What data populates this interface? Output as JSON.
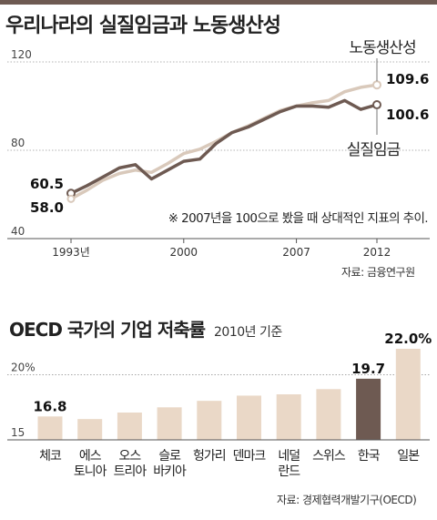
{
  "chart_data": [
    {
      "type": "line",
      "title": "우리나라의 실질임금과 노동생산성",
      "x": [
        1993,
        1994,
        1995,
        1996,
        1997,
        1998,
        1999,
        2000,
        2001,
        2002,
        2003,
        2004,
        2005,
        2006,
        2007,
        2008,
        2009,
        2010,
        2011,
        2012
      ],
      "x_tick_labels": [
        "1993년",
        "2000",
        "2007",
        "2012"
      ],
      "x_ticks": [
        1993,
        2000,
        2007,
        2012
      ],
      "y_tick_labels": [
        "120",
        "80",
        "40"
      ],
      "y_ticks": [
        120,
        80,
        40
      ],
      "ylim": [
        40,
        120
      ],
      "series": [
        {
          "name": "노동생산성",
          "color": "#d9c9bb",
          "values": [
            58.0,
            62.0,
            66.5,
            69.5,
            71.0,
            70.0,
            74.0,
            78.5,
            80.5,
            84.0,
            88.0,
            91.0,
            94.5,
            98.0,
            100.0,
            101.5,
            102.5,
            106.5,
            108.5,
            109.6
          ]
        },
        {
          "name": "실질임금",
          "color": "#6e5a52",
          "values": [
            60.5,
            64.0,
            68.0,
            72.0,
            73.5,
            67.0,
            71.0,
            75.0,
            76.0,
            83.0,
            88.0,
            90.5,
            94.0,
            97.5,
            100.0,
            100.0,
            99.5,
            102.5,
            98.5,
            100.6
          ]
        }
      ],
      "data_labels": {
        "start_wage": "60.5",
        "start_productivity": "58.0",
        "end_productivity": "109.6",
        "end_wage": "100.6"
      },
      "annotation": "※ 2007년을 100으로 봤을 때 상대적인 지표의 추이.",
      "source": "자료: 금융연구원"
    },
    {
      "type": "bar",
      "title": "OECD 국가의 기업 저축률",
      "subtitle": "2010년 기준",
      "categories": [
        [
          "체코"
        ],
        [
          "에스",
          "토니아"
        ],
        [
          "오스",
          "트리아"
        ],
        [
          "슬로",
          "바키아"
        ],
        [
          "헝가리"
        ],
        [
          "덴마크"
        ],
        [
          "네덜",
          "란드"
        ],
        [
          "스위스"
        ],
        [
          "한국"
        ],
        [
          "일본"
        ]
      ],
      "values": [
        16.8,
        16.6,
        17.1,
        17.5,
        18.0,
        18.4,
        18.5,
        18.9,
        19.7,
        22.0
      ],
      "value_labels": [
        "16.8",
        "",
        "",
        "",
        "",
        "",
        "",
        "",
        "19.7",
        "22.0%"
      ],
      "highlight_index": 8,
      "bar_color": "#ead8c7",
      "highlight_color": "#6e5a52",
      "y_tick_labels": [
        "20%",
        "15"
      ],
      "y_ticks": [
        20,
        15
      ],
      "ylim": [
        15,
        22
      ],
      "source": "자료: 경제협력개발기구(OECD)"
    }
  ]
}
